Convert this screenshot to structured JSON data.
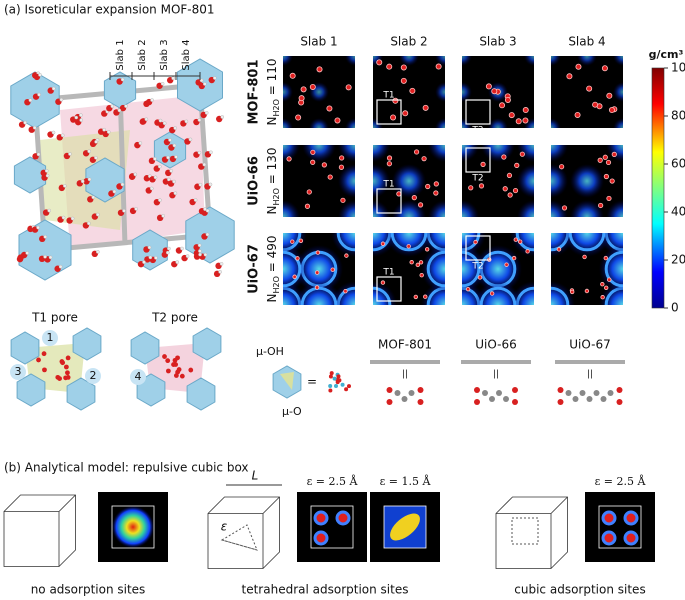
{
  "panel_a": {
    "title": "(a) Isoreticular expansion MOF-801",
    "structure_slabs": [
      "Slab 1",
      "Slab 2",
      "Slab 3",
      "Slab 4"
    ],
    "columns": [
      "Slab 1",
      "Slab 2",
      "Slab 3",
      "Slab 4"
    ],
    "rows": [
      {
        "name": "MOF-801",
        "n_symbol": "N",
        "n_subscript": "H2O",
        "n_value": " = 110"
      },
      {
        "name": "UiO-66",
        "n_symbol": "N",
        "n_subscript": "H2O",
        "n_value": " = 130"
      },
      {
        "name": "UiO-67",
        "n_symbol": "N",
        "n_subscript": "H2O",
        "n_value": " = 490"
      }
    ],
    "pore_tags": [
      "T1",
      "T2"
    ],
    "colorbar": {
      "label": "g/cm³",
      "lim": [
        0,
        100
      ],
      "ticks": [
        0,
        20,
        40,
        60,
        80,
        100
      ]
    },
    "pores": [
      "T1 pore",
      "T2 pore"
    ],
    "sites": [
      "1",
      "2",
      "3",
      "4"
    ],
    "cluster_legend": {
      "mu_oh": "μ-OH",
      "mu_o": "μ-O",
      "equals": "="
    },
    "linkers": [
      {
        "name": "MOF-801",
        "symbol": "||"
      },
      {
        "name": "UiO-66",
        "symbol": "||"
      },
      {
        "name": "UiO-67",
        "symbol": "||"
      }
    ]
  },
  "panel_b": {
    "title": "(b) Analytical model: repulsive cubic box",
    "length_symbol": "L",
    "epsilon_symbol": "ε",
    "cases": [
      {
        "caption": "no adsorption sites",
        "maps": []
      },
      {
        "caption": "tetrahedral adsorption sites",
        "maps": [
          "ε = 2.5 Å",
          "ε = 1.5 Å"
        ]
      },
      {
        "caption": "cubic adsorption sites",
        "maps": [
          "ε = 2.5 Å"
        ]
      }
    ]
  }
}
